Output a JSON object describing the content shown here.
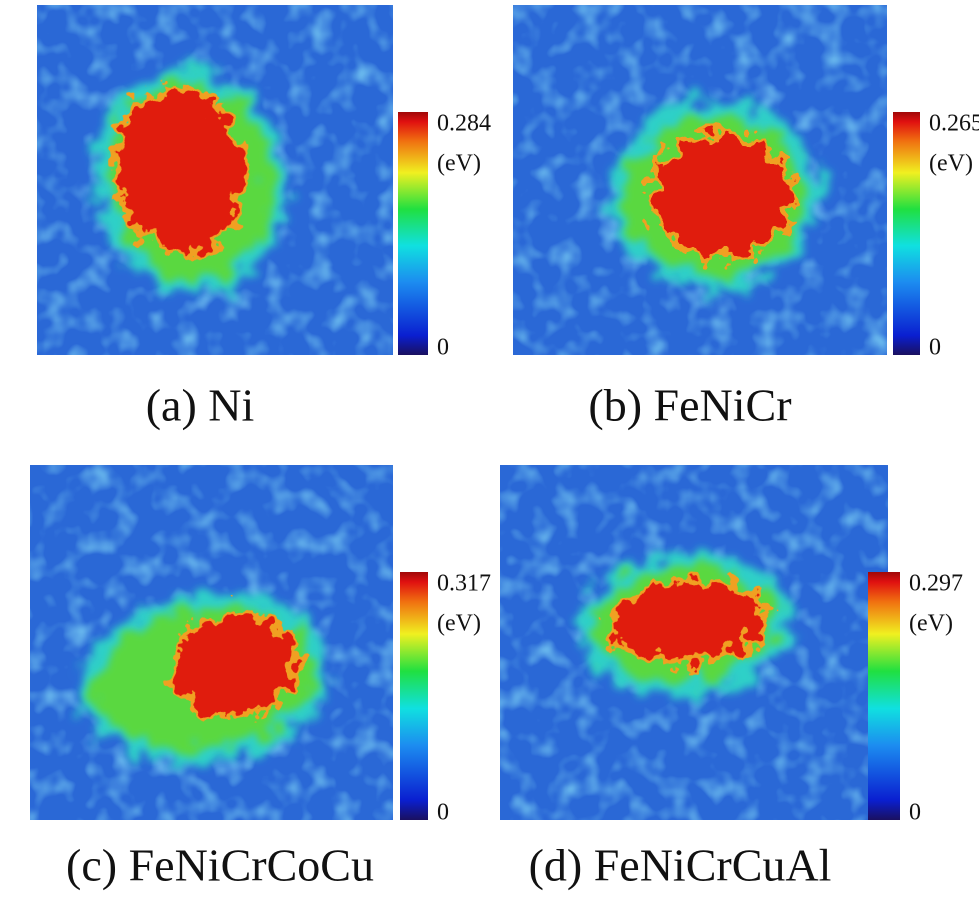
{
  "panels": [
    {
      "caption": "(a) Ni",
      "colorbar": {
        "max": "0.284",
        "unit": "(eV)",
        "min": "0"
      }
    },
    {
      "caption": "(b) FeNiCr",
      "colorbar": {
        "max": "0.265",
        "unit": "(eV)",
        "min": "0"
      }
    },
    {
      "caption": "(c) FeNiCrCoCu",
      "colorbar": {
        "max": "0.317",
        "unit": "(eV)",
        "min": "0"
      }
    },
    {
      "caption": "(d) FeNiCrCuAl",
      "colorbar": {
        "max": "0.297",
        "unit": "(eV)",
        "min": "0"
      }
    }
  ]
}
